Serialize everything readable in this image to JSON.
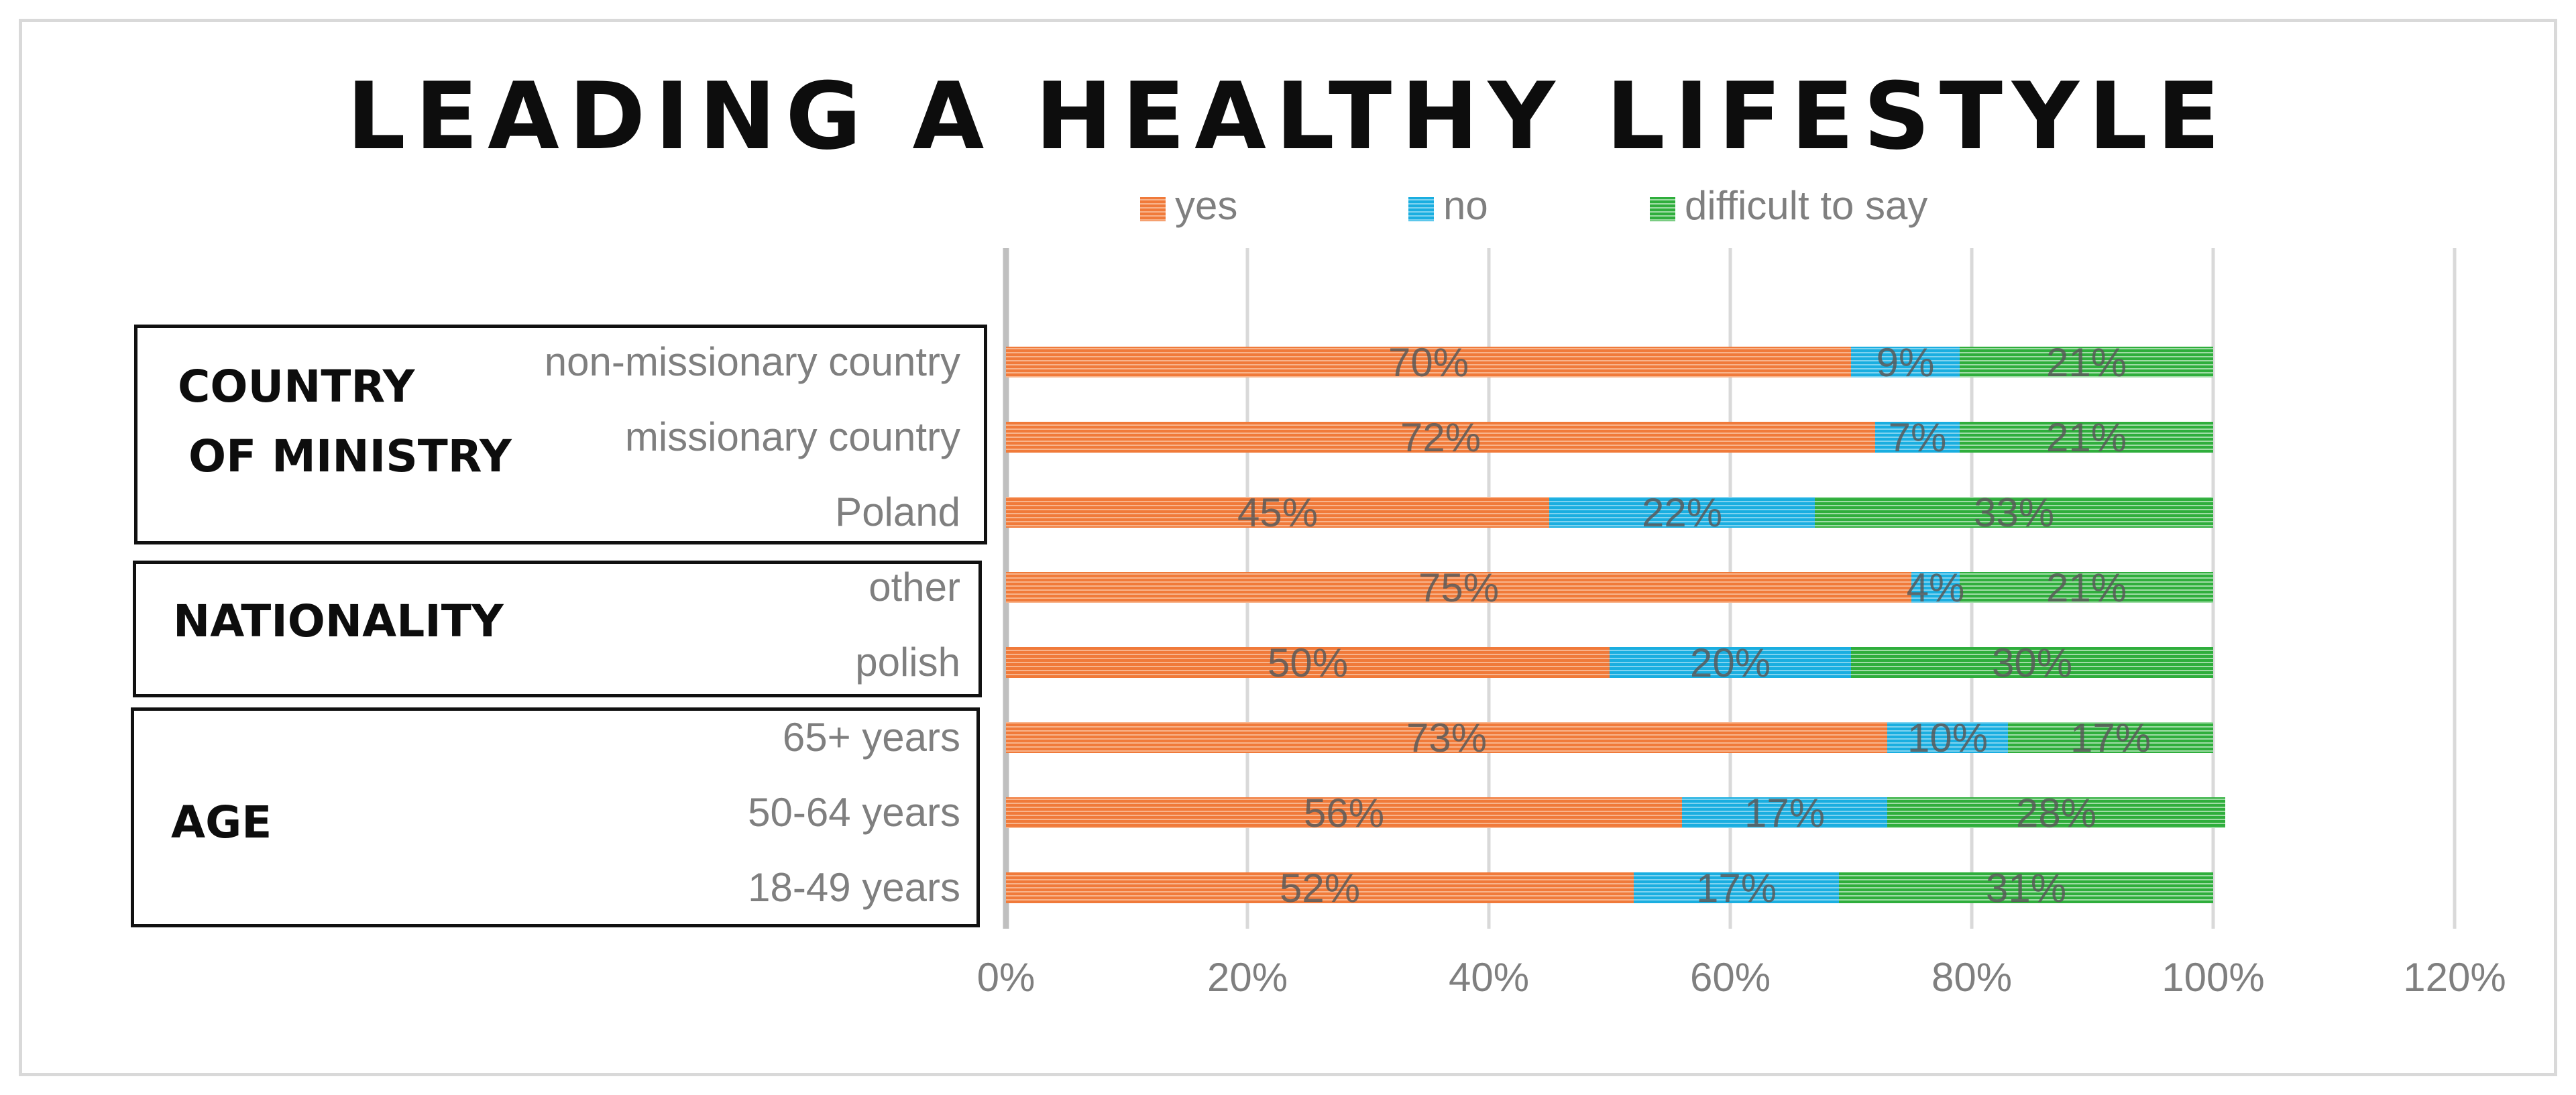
{
  "chart_data": {
    "type": "bar",
    "orientation": "horizontal",
    "stacked": true,
    "title": "LEADING A HEALTHY LIFESTYLE",
    "xlabel": "",
    "ylabel": "",
    "xlim": [
      0,
      120
    ],
    "xticks": [
      0,
      20,
      40,
      60,
      80,
      100,
      120
    ],
    "xtick_labels": [
      "0%",
      "20%",
      "40%",
      "60%",
      "80%",
      "100%",
      "120%"
    ],
    "grid": true,
    "legend_position": "top",
    "categories": [
      "non-missionary country",
      "missionary country",
      "Poland",
      "other",
      "polish",
      "65+ years",
      "50-64 years",
      "18-49 years"
    ],
    "series": [
      {
        "name": "yes",
        "color": "#f07a3a",
        "values": [
          70,
          72,
          45,
          75,
          50,
          73,
          56,
          52
        ],
        "labels": [
          "70%",
          "72%",
          "45%",
          "75%",
          "50%",
          "73%",
          "56%",
          "52%"
        ]
      },
      {
        "name": "no",
        "color": "#1aaee0",
        "values": [
          9,
          7,
          22,
          4,
          20,
          10,
          17,
          17
        ],
        "labels": [
          "9%",
          "7%",
          "22%",
          "4%",
          "20%",
          "10%",
          "17%",
          "17%"
        ]
      },
      {
        "name": "difficult to say",
        "color": "#2fae3c",
        "values": [
          21,
          21,
          33,
          21,
          30,
          17,
          28,
          31
        ],
        "labels": [
          "21%",
          "21%",
          "33%",
          "21%",
          "30%",
          "17%",
          "28%",
          "31%"
        ]
      }
    ],
    "groups": [
      {
        "label_lines": [
          "COUNTRY",
          "OF MINISTRY"
        ],
        "categories": [
          "non-missionary country",
          "missionary country",
          "Poland"
        ]
      },
      {
        "label_lines": [
          "NATIONALITY"
        ],
        "categories": [
          "other",
          "polish"
        ]
      },
      {
        "label_lines": [
          "AGE"
        ],
        "categories": [
          "65+ years",
          "50-64 years",
          "18-49 years"
        ]
      }
    ]
  }
}
